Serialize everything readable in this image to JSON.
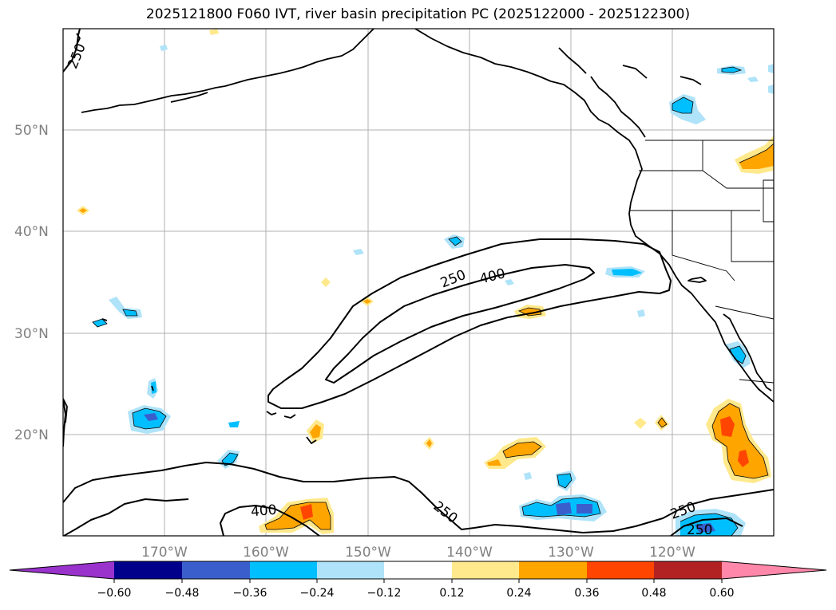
{
  "title": "2025121800 F060 IVT, river basin precipitation PC (2025122000 - 2025122300)",
  "lon_labels": [
    "170°W",
    "160°W",
    "150°W",
    "140°W",
    "130°W",
    "120°W"
  ],
  "lat_labels": [
    "50°N",
    "40°N",
    "30°N",
    "20°N"
  ],
  "contour_labels": [
    "250",
    "250",
    "400",
    "400",
    "250",
    "250",
    "250"
  ],
  "colorbar": {
    "ticks": [
      "−0.60",
      "−0.48",
      "−0.36",
      "−0.24",
      "−0.12",
      "0.12",
      "0.24",
      "0.36",
      "0.48",
      "0.60"
    ],
    "colors": [
      "#9933cc",
      "#00008b",
      "#3a5fcd",
      "#00bfff",
      "#aee3f9",
      "#ffffff",
      "#ffe98c",
      "#ffa500",
      "#ff4500",
      "#b22222",
      "#ff88aa"
    ]
  },
  "colors": {
    "neg_light": "#aee3f9",
    "neg_mid": "#00bfff",
    "neg_dark": "#3a5fcd",
    "pos_light": "#ffe98c",
    "pos_mid": "#ffa500",
    "pos_dark": "#ff4500"
  }
}
